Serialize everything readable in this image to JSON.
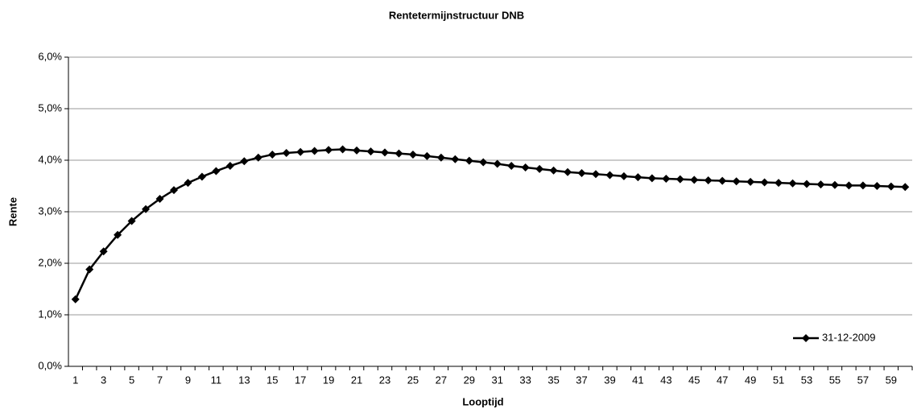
{
  "chart_data": {
    "type": "line",
    "title": "Rentetermijnstructuur DNB",
    "x_label": "Looptijd",
    "y_label": "Rente",
    "categories": [
      1,
      null,
      3,
      null,
      5,
      null,
      7,
      null,
      9,
      null,
      11,
      null,
      13,
      null,
      15,
      null,
      17,
      null,
      19,
      null,
      21,
      null,
      23,
      null,
      25,
      null,
      27,
      null,
      29,
      null,
      31,
      null,
      33,
      null,
      35,
      null,
      37,
      null,
      39,
      null,
      41,
      null,
      43,
      null,
      45,
      null,
      47,
      null,
      49,
      null,
      51,
      null,
      53,
      null,
      55,
      null,
      57,
      null,
      59,
      null
    ],
    "series": [
      {
        "name": "31-12-2009",
        "color": "#000000",
        "values": [
          1.3,
          1.88,
          2.23,
          2.55,
          2.82,
          3.05,
          3.25,
          3.42,
          3.56,
          3.68,
          3.79,
          3.89,
          3.98,
          4.05,
          4.11,
          4.14,
          4.16,
          4.18,
          4.2,
          4.21,
          4.19,
          4.17,
          4.15,
          4.13,
          4.11,
          4.08,
          4.05,
          4.02,
          3.99,
          3.96,
          3.93,
          3.89,
          3.86,
          3.83,
          3.8,
          3.77,
          3.75,
          3.73,
          3.71,
          3.69,
          3.67,
          3.65,
          3.64,
          3.63,
          3.62,
          3.61,
          3.6,
          3.59,
          3.58,
          3.57,
          3.56,
          3.55,
          3.54,
          3.53,
          3.52,
          3.51,
          3.51,
          3.5,
          3.49,
          3.48
        ]
      }
    ],
    "ylim": [
      0,
      6
    ],
    "yticks": [
      {
        "value": 0,
        "label": "0,0%"
      },
      {
        "value": 1,
        "label": "1,0%"
      },
      {
        "value": 2,
        "label": "2,0%"
      },
      {
        "value": 3,
        "label": "3,0%"
      },
      {
        "value": 4,
        "label": "4,0%"
      },
      {
        "value": 5,
        "label": "5,0%"
      },
      {
        "value": 6,
        "label": "6,0%"
      }
    ],
    "grid": true,
    "legend": "lower right"
  }
}
